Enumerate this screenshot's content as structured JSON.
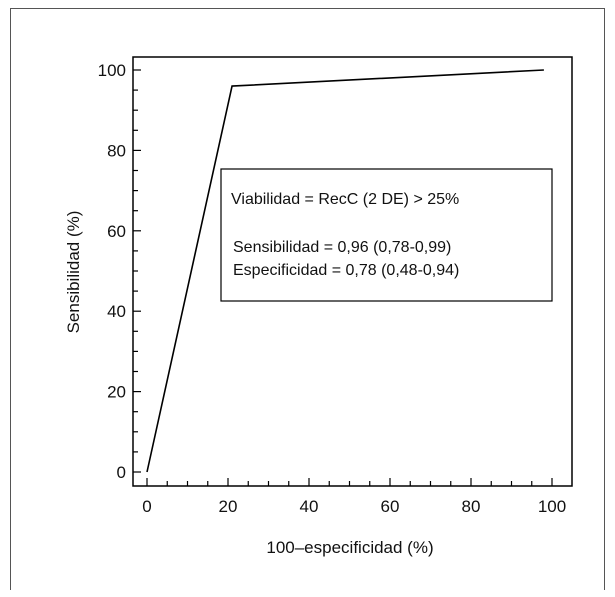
{
  "chart_data": {
    "type": "line",
    "xlabel": "100–especificidad (%)",
    "ylabel": "Sensibilidad (%)",
    "xlim": [
      0,
      100
    ],
    "ylim": [
      0,
      100
    ],
    "x_ticks": [
      "0",
      "20",
      "40",
      "60",
      "80",
      "100"
    ],
    "y_ticks": [
      "0",
      "20",
      "40",
      "60",
      "80",
      "100"
    ],
    "series": [
      {
        "x": [
          0,
          21,
          98
        ],
        "y": [
          0,
          96,
          100
        ]
      }
    ],
    "annotation": {
      "title": "Viabilidad = RecC (2 DE) > 25%",
      "lines": [
        "Sensibilidad = 0,96 (0,78-0,99)",
        "Especificidad = 0,78 (0,48-0,94)"
      ]
    },
    "grid": false,
    "colors": {
      "line": "#000000",
      "axis": "#000000"
    }
  }
}
